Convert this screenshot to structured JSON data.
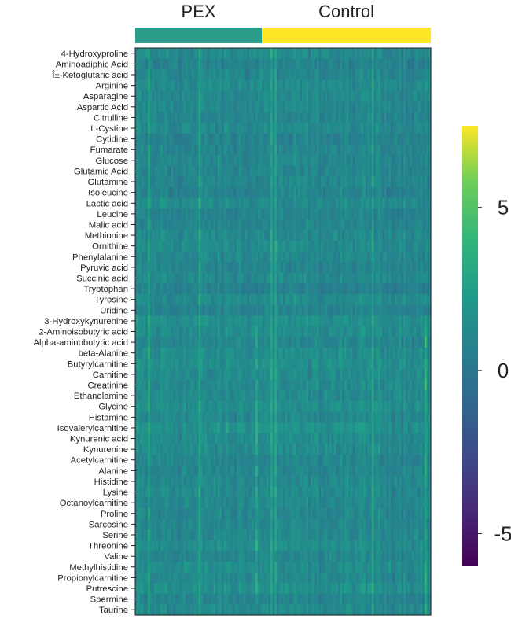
{
  "chart_data": {
    "type": "heatmap",
    "title": "",
    "groups": [
      {
        "name": "PEX",
        "color": "#2a9c8a",
        "n_samples": 60
      },
      {
        "name": "Control",
        "color": "#fde725",
        "n_samples": 80
      }
    ],
    "rows": [
      "4-Hydroxyproline",
      "Aminoadiphic Acid",
      "Î±-Ketoglutaric acid",
      "Arginine",
      "Asparagine",
      "Aspartic Acid",
      "Citrulline",
      "L-Cystine",
      "Cytidine",
      "Fumarate",
      "Glucose",
      "Glutamic Acid",
      "Glutamine",
      "Isoleucine",
      "Lactic acid",
      "Leucine",
      "Malic acid",
      "Methionine",
      "Ornithine",
      "Phenylalanine",
      "Pyruvic acid",
      "Succinic acid",
      "Tryptophan",
      "Tyrosine",
      "Uridine",
      "3-Hydroxykynurenine",
      "2-Aminoisobutyric acid",
      "Alpha-aminobutyric acid",
      "beta-Alanine",
      "Butyrylcarnitine",
      "Carnitine",
      "Creatinine",
      "Ethanolamine",
      "Glycine",
      "Histamine",
      "Isovalerylcarnitine",
      "Kynurenic acid",
      "Kynurenine",
      "Acetylcarnitine",
      "Alanine",
      "Histidine",
      "Lysine",
      "Octanoylcarnitine",
      "Proline",
      "Sarcosine",
      "Serine",
      "Threonine",
      "Valine",
      "Methylhistidine",
      "Propionylcarnitine",
      "Putrescine",
      "Spermine",
      "Taurine"
    ],
    "colorbar": {
      "colormap": "viridis",
      "min": -6,
      "max": 7.5,
      "ticks": [
        5,
        0,
        -5
      ],
      "tick_labels": [
        "5",
        "0",
        "-5"
      ]
    }
  }
}
